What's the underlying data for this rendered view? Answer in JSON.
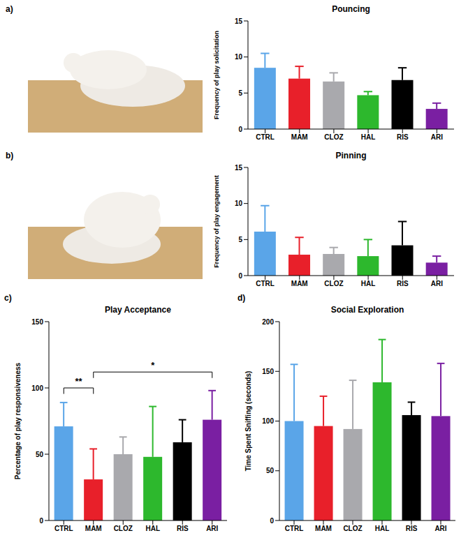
{
  "chart_data": [
    {
      "type": "bar",
      "panel": "a)",
      "title": "Pouncing",
      "y_label": "Frequency of play solicitation",
      "categories": [
        "CTRL",
        "MAM",
        "CLOZ",
        "HAL",
        "RIS",
        "ARI"
      ],
      "values": [
        8.5,
        7.0,
        6.6,
        4.7,
        6.8,
        2.8
      ],
      "errors": [
        2.0,
        1.7,
        1.2,
        0.5,
        1.7,
        0.8
      ],
      "colors": [
        "#5aa5e8",
        "#e8202a",
        "#a9a9ad",
        "#2db82d",
        "#000000",
        "#7a1fa2"
      ],
      "ylim": [
        0,
        15
      ],
      "yticks": [
        0,
        5,
        10,
        15
      ],
      "grid": false
    },
    {
      "type": "bar",
      "panel": "b)",
      "title": "Pinning",
      "y_label": "Frequency of play engagement",
      "categories": [
        "CTRL",
        "MAM",
        "CLOZ",
        "HAL",
        "RIS",
        "ARI"
      ],
      "values": [
        6.1,
        2.9,
        3.0,
        2.7,
        4.2,
        1.8
      ],
      "errors": [
        3.6,
        2.4,
        0.9,
        2.3,
        3.3,
        0.9
      ],
      "colors": [
        "#5aa5e8",
        "#e8202a",
        "#a9a9ad",
        "#2db82d",
        "#000000",
        "#7a1fa2"
      ],
      "ylim": [
        0,
        15
      ],
      "yticks": [
        0,
        5,
        10,
        15
      ],
      "grid": false
    },
    {
      "type": "bar",
      "panel": "c)",
      "title": "Play Acceptance",
      "y_label": "Percentage of play responsiveness",
      "categories": [
        "CTRL",
        "MAM",
        "CLOZ",
        "HAL",
        "RIS",
        "ARI"
      ],
      "values": [
        71,
        31,
        50,
        48,
        59,
        76
      ],
      "errors": [
        18,
        23,
        13,
        38,
        17,
        22
      ],
      "colors": [
        "#5aa5e8",
        "#e8202a",
        "#a9a9ad",
        "#2db82d",
        "#000000",
        "#7a1fa2"
      ],
      "ylim": [
        0,
        150
      ],
      "yticks": [
        0,
        50,
        100,
        150
      ],
      "grid": false,
      "annotations": [
        {
          "text": "**",
          "from": "CTRL",
          "to": "MAM",
          "y": 100
        },
        {
          "text": "*",
          "from": "MAM",
          "to": "ARI",
          "y": 112
        }
      ]
    },
    {
      "type": "bar",
      "panel": "d)",
      "title": "Social Exploration",
      "y_label": "Time Spent Sniffing (seconds)",
      "categories": [
        "CTRL",
        "MAM",
        "CLOZ",
        "HAL",
        "RIS",
        "ARI"
      ],
      "values": [
        100,
        95,
        92,
        139,
        106,
        105
      ],
      "errors": [
        57,
        30,
        49,
        43,
        13,
        53
      ],
      "colors": [
        "#5aa5e8",
        "#e8202a",
        "#a9a9ad",
        "#2db82d",
        "#000000",
        "#7a1fa2"
      ],
      "ylim": [
        0,
        200
      ],
      "yticks": [
        0,
        50,
        100,
        150,
        200
      ],
      "grid": false
    }
  ]
}
